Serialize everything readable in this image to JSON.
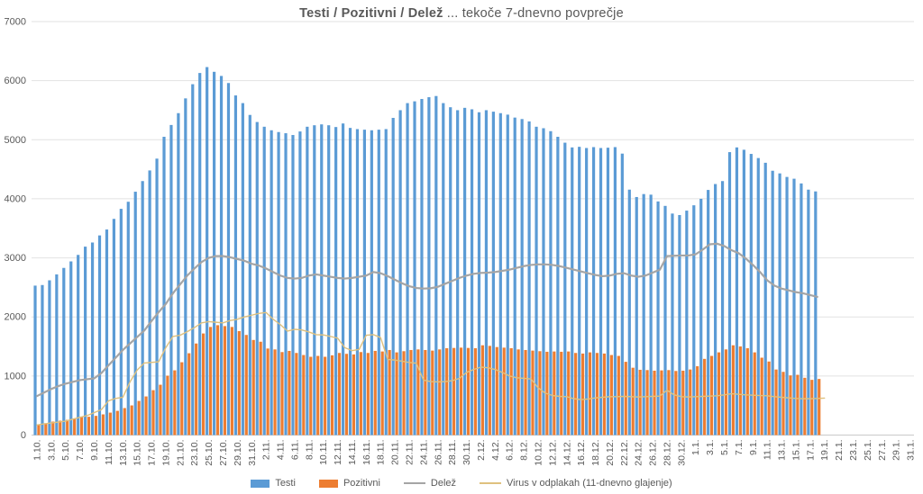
{
  "title": {
    "bold": "Testi / Pozitivni / Delež",
    "regular": " ... tekoče 7-dnevno povprečje"
  },
  "colors": {
    "testi": "#5B9BD5",
    "pozitivni": "#ED7D31",
    "delez": "#A5A5A5",
    "virus": "#DFC17E",
    "gridline": "#E2E2E2",
    "axis_line": "#C9C9C9",
    "axis_text": "#595959",
    "title_text": "#595959"
  },
  "chart_data": {
    "type": "combo",
    "title": "Testi / Pozitivni / Delež ... tekoče 7-dnevno povprečje",
    "ylim": [
      0,
      7000
    ],
    "ytick_labels": [
      "0",
      "1000",
      "2000",
      "3000",
      "4000",
      "5000",
      "6000",
      "7000"
    ],
    "yticks": [
      0,
      1000,
      2000,
      3000,
      4000,
      5000,
      6000,
      7000
    ],
    "days_axis_total": 123,
    "x_tick_step_days": 2,
    "xtick_labels": [
      "1.10.",
      "3.10.",
      "5.10.",
      "7.10.",
      "9.10.",
      "11.10.",
      "13.10.",
      "15.10.",
      "17.10.",
      "19.10.",
      "21.10.",
      "23.10.",
      "25.10.",
      "27.10.",
      "29.10.",
      "31.10.",
      "2.11.",
      "4.11.",
      "6.11.",
      "8.11.",
      "10.11.",
      "12.11.",
      "14.11.",
      "16.11.",
      "18.11.",
      "20.11.",
      "22.11.",
      "24.11.",
      "26.11.",
      "28.11.",
      "30.11.",
      "2.12.",
      "4.12.",
      "6.12.",
      "8.12.",
      "10.12.",
      "12.12.",
      "14.12.",
      "16.12.",
      "18.12.",
      "20.12.",
      "22.12.",
      "24.12.",
      "26.12.",
      "28.12.",
      "30.12.",
      "1.1.",
      "3.1.",
      "5.1.",
      "7.1.",
      "9.1.",
      "11.1.",
      "13.1.",
      "15.1.",
      "17.1.",
      "19.1.",
      "21.1.",
      "23.1.",
      "25.1.",
      "27.1.",
      "29.1.",
      "31.1."
    ],
    "grid": true,
    "legend_position": "bottom",
    "series": [
      {
        "name": "Testi",
        "type": "bar",
        "color": "#5B9BD5",
        "values": [
          2530,
          2540,
          2620,
          2720,
          2830,
          2940,
          3050,
          3190,
          3260,
          3380,
          3480,
          3660,
          3830,
          3950,
          4120,
          4300,
          4480,
          4680,
          5050,
          5250,
          5450,
          5700,
          5940,
          6130,
          6230,
          6150,
          6080,
          5960,
          5750,
          5620,
          5420,
          5300,
          5220,
          5160,
          5130,
          5110,
          5080,
          5140,
          5220,
          5245,
          5260,
          5245,
          5215,
          5275,
          5200,
          5180,
          5170,
          5160,
          5170,
          5180,
          5370,
          5500,
          5620,
          5650,
          5690,
          5720,
          5740,
          5620,
          5550,
          5500,
          5540,
          5515,
          5465,
          5500,
          5475,
          5450,
          5425,
          5375,
          5350,
          5310,
          5220,
          5195,
          5145,
          5050,
          4950,
          4870,
          4880,
          4860,
          4875,
          4860,
          4865,
          4875,
          4765,
          4155,
          4030,
          4080,
          4070,
          3955,
          3880,
          3750,
          3725,
          3800,
          3890,
          4000,
          4150,
          4250,
          4300,
          4790,
          4870,
          4830,
          4760,
          4690,
          4610,
          4475,
          4430,
          4370,
          4340,
          4260,
          4155,
          4125
        ]
      },
      {
        "name": "Pozitivni",
        "type": "bar",
        "color": "#ED7D31",
        "values": [
          170,
          200,
          228,
          243,
          258,
          275,
          305,
          310,
          325,
          350,
          380,
          410,
          457,
          502,
          578,
          654,
          760,
          852,
          1005,
          1096,
          1233,
          1385,
          1550,
          1720,
          1830,
          1860,
          1845,
          1830,
          1760,
          1695,
          1610,
          1580,
          1465,
          1450,
          1405,
          1425,
          1390,
          1355,
          1325,
          1340,
          1325,
          1350,
          1390,
          1375,
          1365,
          1405,
          1390,
          1425,
          1415,
          1440,
          1400,
          1420,
          1440,
          1450,
          1440,
          1430,
          1450,
          1470,
          1475,
          1480,
          1475,
          1470,
          1520,
          1510,
          1490,
          1480,
          1470,
          1450,
          1440,
          1430,
          1420,
          1410,
          1415,
          1410,
          1415,
          1390,
          1380,
          1400,
          1390,
          1380,
          1355,
          1340,
          1240,
          1140,
          1105,
          1100,
          1090,
          1095,
          1100,
          1085,
          1090,
          1110,
          1165,
          1290,
          1340,
          1400,
          1450,
          1520,
          1500,
          1470,
          1400,
          1310,
          1245,
          1110,
          1070,
          1010,
          1020,
          970,
          935,
          950
        ]
      },
      {
        "name": "Delež",
        "type": "line",
        "color": "#A5A5A5",
        "values": [
          660,
          720,
          780,
          830,
          870,
          900,
          930,
          945,
          960,
          1050,
          1180,
          1310,
          1440,
          1550,
          1660,
          1770,
          1930,
          2080,
          2220,
          2400,
          2550,
          2700,
          2820,
          2930,
          3000,
          3030,
          3030,
          3010,
          2980,
          2950,
          2900,
          2870,
          2820,
          2760,
          2700,
          2660,
          2650,
          2660,
          2700,
          2720,
          2700,
          2680,
          2660,
          2650,
          2660,
          2680,
          2700,
          2760,
          2740,
          2690,
          2630,
          2570,
          2520,
          2490,
          2480,
          2485,
          2510,
          2560,
          2610,
          2660,
          2700,
          2730,
          2745,
          2750,
          2760,
          2780,
          2800,
          2830,
          2860,
          2880,
          2890,
          2890,
          2880,
          2860,
          2830,
          2800,
          2770,
          2740,
          2710,
          2690,
          2700,
          2730,
          2740,
          2700,
          2680,
          2700,
          2750,
          2800,
          3030,
          3035,
          3040,
          3040,
          3060,
          3140,
          3230,
          3240,
          3200,
          3130,
          3080,
          2990,
          2880,
          2760,
          2620,
          2530,
          2480,
          2450,
          2420,
          2400,
          2370,
          2340
        ]
      },
      {
        "name": "Virus v odplakah (11-dnevno glajenje)",
        "type": "line",
        "color": "#DFC17E",
        "values": [
          170,
          190,
          205,
          220,
          235,
          270,
          300,
          330,
          380,
          430,
          580,
          620,
          640,
          900,
          1100,
          1220,
          1230,
          1240,
          1480,
          1670,
          1690,
          1750,
          1820,
          1900,
          1920,
          1910,
          1900,
          1940,
          1960,
          2000,
          2030,
          2060,
          2075,
          1960,
          1870,
          1760,
          1790,
          1780,
          1745,
          1700,
          1695,
          1670,
          1640,
          1480,
          1430,
          1450,
          1690,
          1700,
          1650,
          1280,
          1270,
          1250,
          1230,
          1215,
          930,
          905,
          900,
          905,
          920,
          960,
          1060,
          1110,
          1150,
          1140,
          1110,
          1060,
          1000,
          970,
          960,
          950,
          800,
          710,
          670,
          655,
          650,
          615,
          600,
          610,
          630,
          640,
          650,
          650,
          655,
          650,
          645,
          650,
          655,
          660,
          760,
          680,
          650,
          645,
          650,
          655,
          660,
          665,
          680,
          700,
          690,
          680,
          675,
          670,
          665,
          650,
          640,
          630,
          620,
          615,
          615,
          620,
          625
        ]
      }
    ]
  },
  "legend": {
    "items": [
      {
        "label": "Testi"
      },
      {
        "label": "Pozitivni"
      },
      {
        "label": "Delež"
      },
      {
        "label": "Virus v odplakah (11-dnevno glajenje)"
      }
    ]
  }
}
